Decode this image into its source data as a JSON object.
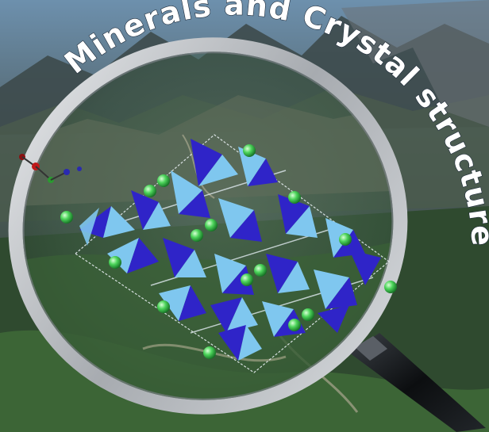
{
  "banner": {
    "title": "Minerals and Crystal structures"
  },
  "colors": {
    "sky": "#7fa6c4",
    "mountain_dark": "#2f3b3e",
    "valley_green": "#3f6b3a",
    "lens_rim": "#c9ccd0",
    "handle": "#0d0f12",
    "tetra_dark": "#2f24c8",
    "tetra_light": "#7fc7ef",
    "atom_green": "#4cd45a",
    "title_text": "#ffffff"
  },
  "icons": [
    "magnifying-glass-icon",
    "crystal-structure-graphic",
    "green-atom"
  ]
}
